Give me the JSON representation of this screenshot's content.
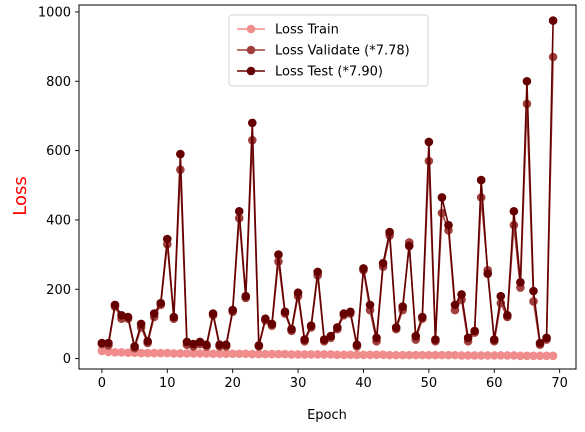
{
  "chart_data": {
    "type": "line",
    "xlabel": "Epoch",
    "ylabel": "Loss",
    "ylabel_color": "#ff0000",
    "xlim": [
      -3.5,
      72.5
    ],
    "ylim": [
      -30,
      1020
    ],
    "xticks": [
      0,
      10,
      20,
      30,
      40,
      50,
      60,
      70
    ],
    "yticks": [
      0,
      200,
      400,
      600,
      800,
      1000
    ],
    "grid": false,
    "legend_placement": "top-center",
    "series": [
      {
        "name": "Loss Train",
        "color": "#f08c8c",
        "marker": "circle",
        "values": [
          22,
          19,
          18,
          18,
          17,
          17,
          16,
          16,
          16,
          16,
          16,
          15,
          15,
          15,
          15,
          15,
          15,
          14,
          14,
          14,
          14,
          14,
          14,
          13,
          13,
          13,
          13,
          13,
          13,
          12,
          12,
          12,
          12,
          12,
          12,
          12,
          11,
          11,
          11,
          11,
          11,
          11,
          11,
          11,
          10,
          10,
          10,
          10,
          10,
          10,
          10,
          10,
          10,
          10,
          10,
          9,
          9,
          9,
          9,
          9,
          9,
          9,
          9,
          9,
          8,
          8,
          8,
          8,
          8,
          8
        ]
      },
      {
        "name": "Loss Validate (*7.78)",
        "color": "#a0403c",
        "marker": "circle",
        "values": [
          42,
          38,
          150,
          115,
          115,
          30,
          90,
          45,
          120,
          155,
          330,
          115,
          545,
          40,
          35,
          42,
          35,
          125,
          35,
          35,
          135,
          405,
          175,
          630,
          35,
          110,
          95,
          280,
          130,
          80,
          180,
          50,
          90,
          240,
          50,
          60,
          85,
          125,
          130,
          35,
          255,
          140,
          50,
          265,
          355,
          85,
          140,
          335,
          55,
          115,
          570,
          50,
          420,
          370,
          140,
          170,
          50,
          75,
          465,
          255,
          50,
          160,
          120,
          385,
          205,
          735,
          165,
          40,
          55,
          870
        ]
      },
      {
        "name": "Loss Test (*7.90)",
        "color": "#660000",
        "marker": "circle",
        "values": [
          45,
          45,
          155,
          125,
          120,
          35,
          100,
          50,
          130,
          160,
          345,
          120,
          590,
          48,
          42,
          48,
          40,
          130,
          40,
          40,
          140,
          425,
          180,
          680,
          38,
          115,
          100,
          300,
          135,
          85,
          190,
          55,
          95,
          250,
          55,
          65,
          90,
          130,
          135,
          40,
          260,
          155,
          60,
          275,
          365,
          90,
          150,
          325,
          65,
          120,
          625,
          55,
          465,
          385,
          155,
          185,
          60,
          80,
          515,
          245,
          55,
          180,
          125,
          425,
          220,
          800,
          195,
          45,
          60,
          975
        ]
      }
    ]
  }
}
